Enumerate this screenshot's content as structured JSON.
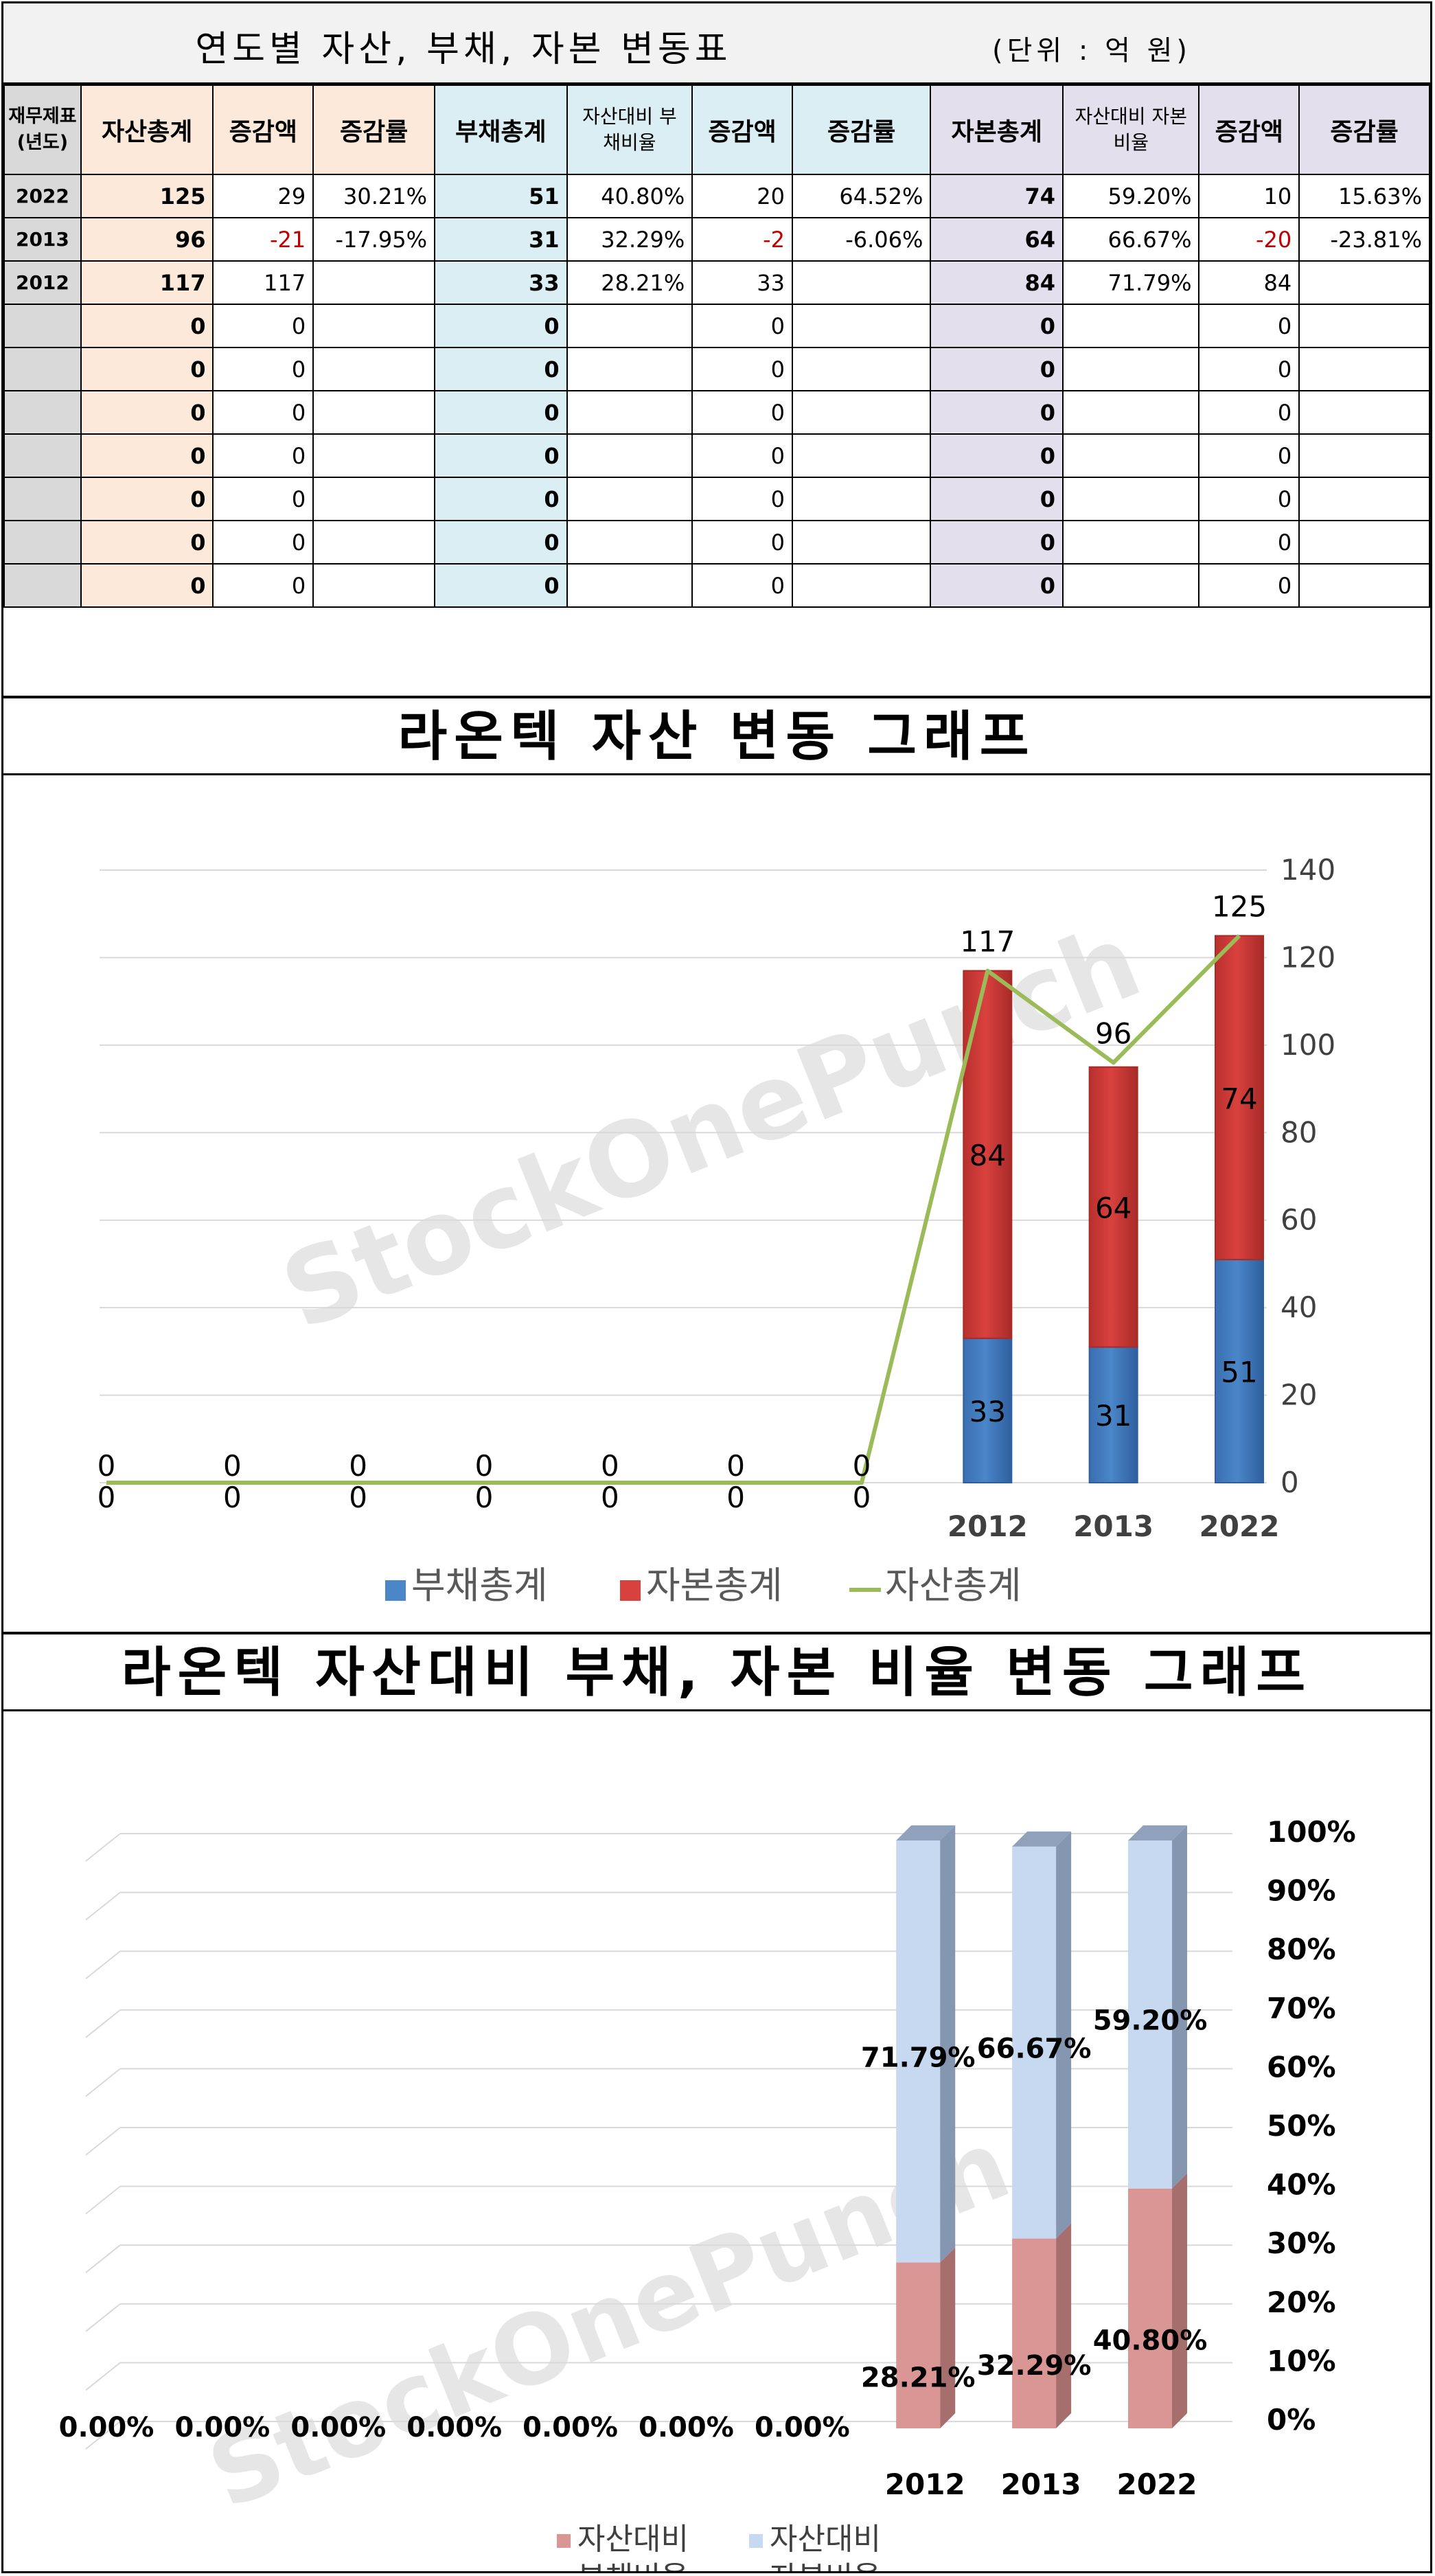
{
  "table": {
    "title": "연도별 자산, 부채, 자본 변동표",
    "unit": "(단위 : 억 원)",
    "headers": {
      "year": "재무제표(년도)",
      "asset_total": "자산총계",
      "asset_change": "증감액",
      "asset_rate": "증감률",
      "debt_total": "부채총계",
      "debt_ratio": "자산대비 부채비율",
      "debt_change": "증감액",
      "debt_rate": "증감률",
      "equity_total": "자본총계",
      "equity_ratio": "자산대비 자본비율",
      "equity_change": "증감액",
      "equity_rate": "증감률"
    },
    "rows": [
      [
        "2022",
        "125",
        "29",
        "30.21%",
        "51",
        "40.80%",
        "20",
        "64.52%",
        "74",
        "59.20%",
        "10",
        "15.63%"
      ],
      [
        "2013",
        "96",
        "-21",
        "-17.95%",
        "31",
        "32.29%",
        "-2",
        "-6.06%",
        "64",
        "66.67%",
        "-20",
        "-23.81%"
      ],
      [
        "2012",
        "117",
        "117",
        "",
        "33",
        "28.21%",
        "33",
        "",
        "84",
        "71.79%",
        "84",
        ""
      ],
      [
        "",
        "0",
        "0",
        "",
        "0",
        "",
        "0",
        "",
        "0",
        "",
        "0",
        ""
      ],
      [
        "",
        "0",
        "0",
        "",
        "0",
        "",
        "0",
        "",
        "0",
        "",
        "0",
        ""
      ],
      [
        "",
        "0",
        "0",
        "",
        "0",
        "",
        "0",
        "",
        "0",
        "",
        "0",
        ""
      ],
      [
        "",
        "0",
        "0",
        "",
        "0",
        "",
        "0",
        "",
        "0",
        "",
        "0",
        ""
      ],
      [
        "",
        "0",
        "0",
        "",
        "0",
        "",
        "0",
        "",
        "0",
        "",
        "0",
        ""
      ],
      [
        "",
        "0",
        "0",
        "",
        "0",
        "",
        "0",
        "",
        "0",
        "",
        "0",
        ""
      ],
      [
        "",
        "0",
        "0",
        "",
        "0",
        "",
        "0",
        "",
        "0",
        "",
        "0",
        ""
      ]
    ]
  },
  "colors": {
    "debt_bar": "#4a86c8",
    "equity_bar": "#d9413e",
    "asset_line": "#9bbb59",
    "debt_ratio": "#d99694",
    "equity_ratio": "#c6d9f0",
    "negative": "#c00000"
  },
  "watermark": "StockOnePunch",
  "chart_data": [
    {
      "type": "bar",
      "title": "라온텍 자산 변동 그래프",
      "categories": [
        "",
        "",
        "",
        "",
        "",
        "",
        "",
        "2012",
        "2013",
        "2022"
      ],
      "series": [
        {
          "name": "부채총계",
          "kind": "stacked-bar",
          "values": [
            0,
            0,
            0,
            0,
            0,
            0,
            0,
            33,
            31,
            51
          ]
        },
        {
          "name": "자본총계",
          "kind": "stacked-bar",
          "values": [
            0,
            0,
            0,
            0,
            0,
            0,
            0,
            84,
            64,
            74
          ]
        },
        {
          "name": "자산총계",
          "kind": "line",
          "values": [
            0,
            0,
            0,
            0,
            0,
            0,
            0,
            117,
            96,
            125
          ]
        }
      ],
      "ylim": [
        0,
        140
      ],
      "yticks": [
        "0",
        "20",
        "40",
        "60",
        "80",
        "100",
        "120",
        "140"
      ],
      "grid": true,
      "legend": "bottom"
    },
    {
      "type": "bar",
      "title": "라온텍 자산대비 부채, 자본 비율 변동 그래프",
      "categories": [
        "",
        "",
        "",
        "",
        "",
        "",
        "",
        "2012",
        "2013",
        "2022"
      ],
      "series": [
        {
          "name": "자산대비 부채비율",
          "values": [
            0,
            0,
            0,
            0,
            0,
            0,
            0,
            28.21,
            32.29,
            40.8
          ],
          "labels": [
            "0.00%",
            "0.00%",
            "0.00%",
            "0.00%",
            "0.00%",
            "0.00%",
            "0.00%",
            "28.21%",
            "32.29%",
            "40.80%"
          ]
        },
        {
          "name": "자산대비 자본비율",
          "values": [
            0,
            0,
            0,
            0,
            0,
            0,
            0,
            71.79,
            66.67,
            59.2
          ],
          "labels": [
            "",
            "",
            "",
            "",
            "",
            "",
            "",
            "71.79%",
            "66.67%",
            "59.20%"
          ]
        }
      ],
      "ylim": [
        0,
        100
      ],
      "yticks": [
        "0%",
        "10%",
        "20%",
        "30%",
        "40%",
        "50%",
        "60%",
        "70%",
        "80%",
        "90%",
        "100%"
      ],
      "grid": true,
      "legend": "bottom"
    }
  ]
}
